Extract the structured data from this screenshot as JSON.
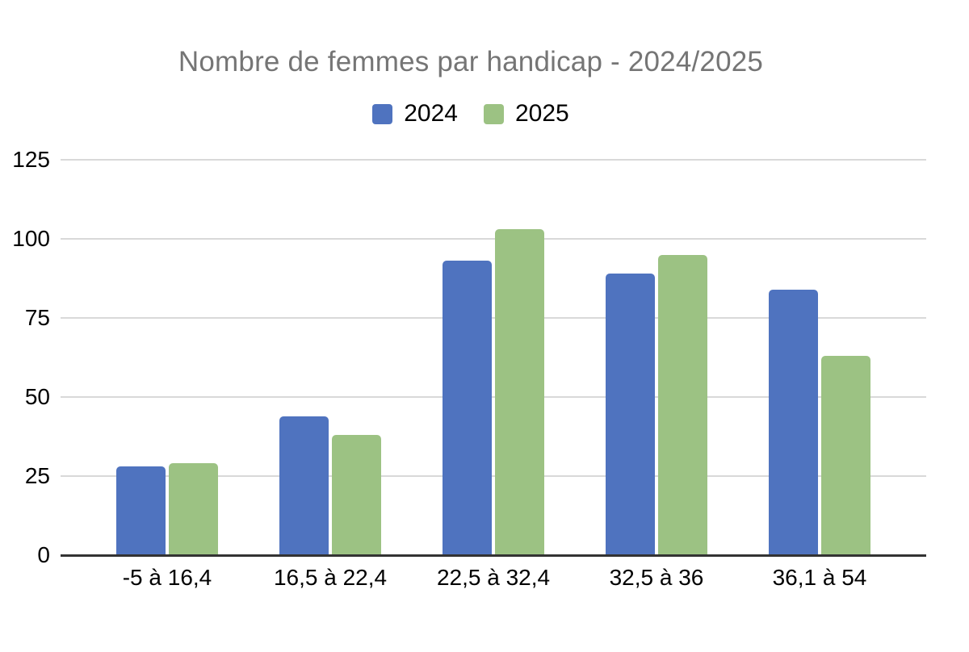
{
  "chart_data": {
    "type": "bar",
    "title": "Nombre de femmes par handicap - 2024/2025",
    "categories": [
      "-5 à 16,4",
      "16,5 à 22,4",
      "22,5 à 32,4",
      "32,5 à 36",
      "36,1 à 54"
    ],
    "series": [
      {
        "name": "2024",
        "color": "#4F73BF",
        "values": [
          28,
          44,
          93,
          89,
          84
        ]
      },
      {
        "name": "2025",
        "color": "#9CC283",
        "values": [
          29,
          38,
          103,
          95,
          63
        ]
      }
    ],
    "xlabel": "",
    "ylabel": "",
    "ylim": [
      0,
      125
    ],
    "yticks": [
      0,
      25,
      50,
      75,
      100,
      125
    ],
    "grid": true,
    "legend_position": "top",
    "colors": {
      "background": "#ffffff",
      "title_text": "#757575",
      "axis_text": "#000000",
      "gridline": "#d9d9d9",
      "axis_line": "#333333",
      "series_2024": "#4F73BF",
      "series_2025": "#9CC283"
    }
  }
}
